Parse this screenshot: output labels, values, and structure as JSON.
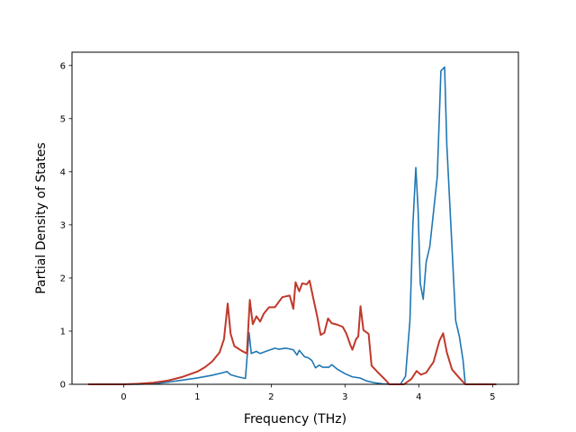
{
  "chart_data": {
    "type": "line",
    "title": "",
    "xlabel": "Frequency (THz)",
    "ylabel": "Partial Density of States",
    "xlim": [
      -0.7,
      5.35
    ],
    "ylim": [
      0,
      6.25
    ],
    "x_ticks": [
      0,
      1,
      2,
      3,
      4,
      5
    ],
    "y_ticks": [
      0,
      1,
      2,
      3,
      4,
      5,
      6
    ],
    "x_tick_labels": [
      "0",
      "1",
      "2",
      "3",
      "4",
      "5"
    ],
    "y_tick_labels": [
      "0",
      "1",
      "2",
      "3",
      "4",
      "5",
      "6"
    ],
    "grid": false,
    "legend": "none",
    "series": [
      {
        "color": "#1f77b4",
        "points": [
          [
            -0.48,
            0.0
          ],
          [
            0.0,
            0.0
          ],
          [
            0.2,
            0.0
          ],
          [
            0.4,
            0.01
          ],
          [
            0.6,
            0.04
          ],
          [
            0.8,
            0.08
          ],
          [
            1.0,
            0.12
          ],
          [
            1.2,
            0.17
          ],
          [
            1.35,
            0.22
          ],
          [
            1.4,
            0.24
          ],
          [
            1.45,
            0.18
          ],
          [
            1.55,
            0.14
          ],
          [
            1.65,
            0.11
          ],
          [
            1.7,
            0.97
          ],
          [
            1.73,
            0.58
          ],
          [
            1.8,
            0.62
          ],
          [
            1.85,
            0.58
          ],
          [
            1.95,
            0.63
          ],
          [
            2.05,
            0.68
          ],
          [
            2.1,
            0.66
          ],
          [
            2.2,
            0.68
          ],
          [
            2.3,
            0.65
          ],
          [
            2.35,
            0.55
          ],
          [
            2.38,
            0.64
          ],
          [
            2.45,
            0.52
          ],
          [
            2.5,
            0.5
          ],
          [
            2.55,
            0.45
          ],
          [
            2.6,
            0.31
          ],
          [
            2.65,
            0.36
          ],
          [
            2.7,
            0.32
          ],
          [
            2.78,
            0.32
          ],
          [
            2.82,
            0.37
          ],
          [
            2.9,
            0.28
          ],
          [
            3.0,
            0.2
          ],
          [
            3.1,
            0.14
          ],
          [
            3.2,
            0.12
          ],
          [
            3.3,
            0.06
          ],
          [
            3.4,
            0.03
          ],
          [
            3.5,
            0.01
          ],
          [
            3.6,
            0.0
          ],
          [
            3.75,
            0.0
          ],
          [
            3.82,
            0.15
          ],
          [
            3.88,
            1.2
          ],
          [
            3.92,
            3.0
          ],
          [
            3.96,
            4.08
          ],
          [
            3.99,
            3.3
          ],
          [
            4.02,
            1.9
          ],
          [
            4.06,
            1.6
          ],
          [
            4.1,
            2.3
          ],
          [
            4.15,
            2.6
          ],
          [
            4.25,
            3.9
          ],
          [
            4.3,
            5.9
          ],
          [
            4.35,
            5.97
          ],
          [
            4.38,
            4.5
          ],
          [
            4.42,
            3.4
          ],
          [
            4.5,
            1.2
          ],
          [
            4.55,
            0.9
          ],
          [
            4.6,
            0.45
          ],
          [
            4.63,
            0.0
          ],
          [
            5.05,
            0.0
          ]
        ]
      },
      {
        "color": "#c0392b",
        "points": [
          [
            -0.48,
            0.0
          ],
          [
            0.0,
            0.0
          ],
          [
            0.2,
            0.01
          ],
          [
            0.4,
            0.03
          ],
          [
            0.6,
            0.07
          ],
          [
            0.8,
            0.14
          ],
          [
            1.0,
            0.24
          ],
          [
            1.1,
            0.32
          ],
          [
            1.2,
            0.43
          ],
          [
            1.3,
            0.6
          ],
          [
            1.36,
            0.85
          ],
          [
            1.41,
            1.52
          ],
          [
            1.45,
            0.95
          ],
          [
            1.5,
            0.72
          ],
          [
            1.6,
            0.63
          ],
          [
            1.67,
            0.58
          ],
          [
            1.71,
            1.59
          ],
          [
            1.75,
            1.13
          ],
          [
            1.8,
            1.28
          ],
          [
            1.85,
            1.18
          ],
          [
            1.9,
            1.33
          ],
          [
            1.97,
            1.45
          ],
          [
            2.05,
            1.45
          ],
          [
            2.15,
            1.64
          ],
          [
            2.25,
            1.67
          ],
          [
            2.3,
            1.42
          ],
          [
            2.33,
            1.92
          ],
          [
            2.38,
            1.75
          ],
          [
            2.42,
            1.9
          ],
          [
            2.48,
            1.88
          ],
          [
            2.52,
            1.95
          ],
          [
            2.57,
            1.62
          ],
          [
            2.62,
            1.3
          ],
          [
            2.67,
            0.93
          ],
          [
            2.72,
            0.97
          ],
          [
            2.77,
            1.24
          ],
          [
            2.82,
            1.15
          ],
          [
            2.9,
            1.12
          ],
          [
            2.97,
            1.08
          ],
          [
            3.02,
            0.95
          ],
          [
            3.07,
            0.75
          ],
          [
            3.1,
            0.65
          ],
          [
            3.15,
            0.85
          ],
          [
            3.18,
            0.9
          ],
          [
            3.21,
            1.47
          ],
          [
            3.25,
            1.02
          ],
          [
            3.32,
            0.95
          ],
          [
            3.36,
            0.35
          ],
          [
            3.45,
            0.22
          ],
          [
            3.55,
            0.08
          ],
          [
            3.6,
            0.0
          ],
          [
            3.8,
            0.0
          ],
          [
            3.9,
            0.1
          ],
          [
            3.97,
            0.25
          ],
          [
            4.03,
            0.18
          ],
          [
            4.1,
            0.22
          ],
          [
            4.2,
            0.42
          ],
          [
            4.28,
            0.82
          ],
          [
            4.33,
            0.96
          ],
          [
            4.38,
            0.6
          ],
          [
            4.45,
            0.28
          ],
          [
            4.55,
            0.12
          ],
          [
            4.63,
            0.0
          ],
          [
            5.05,
            0.0
          ]
        ]
      }
    ]
  }
}
